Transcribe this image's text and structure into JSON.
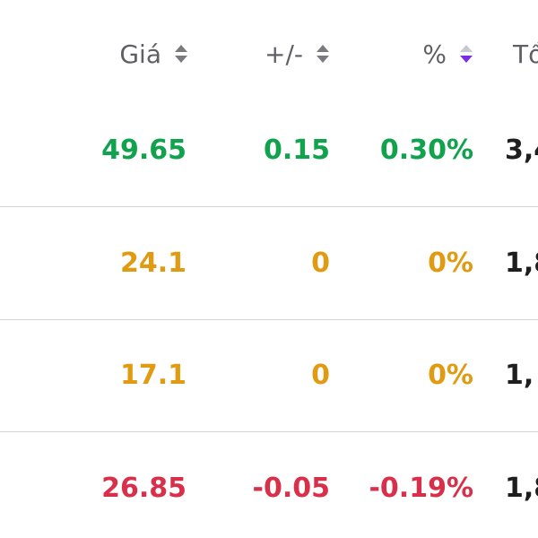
{
  "header": {
    "columns": [
      {
        "label": "Giá",
        "sort": "none"
      },
      {
        "label": "+/-",
        "sort": "none"
      },
      {
        "label": "%",
        "sort": "descending"
      },
      {
        "label": "Tổ"
      }
    ]
  },
  "colors": {
    "up": "#10a24d",
    "ref": "#e09b12",
    "down": "#d8304a",
    "sort_active": "#7b2fe0"
  },
  "rows": [
    {
      "price": "49.65",
      "change": "0.15",
      "percent": "0.30%",
      "total": "3,4",
      "trend": "up"
    },
    {
      "price": "24.1",
      "change": "0",
      "percent": "0%",
      "total": "1,8",
      "trend": "ref"
    },
    {
      "price": "17.1",
      "change": "0",
      "percent": "0%",
      "total": "1,",
      "trend": "ref"
    },
    {
      "price": "26.85",
      "change": "-0.05",
      "percent": "-0.19%",
      "total": "1,8",
      "trend": "down"
    }
  ]
}
